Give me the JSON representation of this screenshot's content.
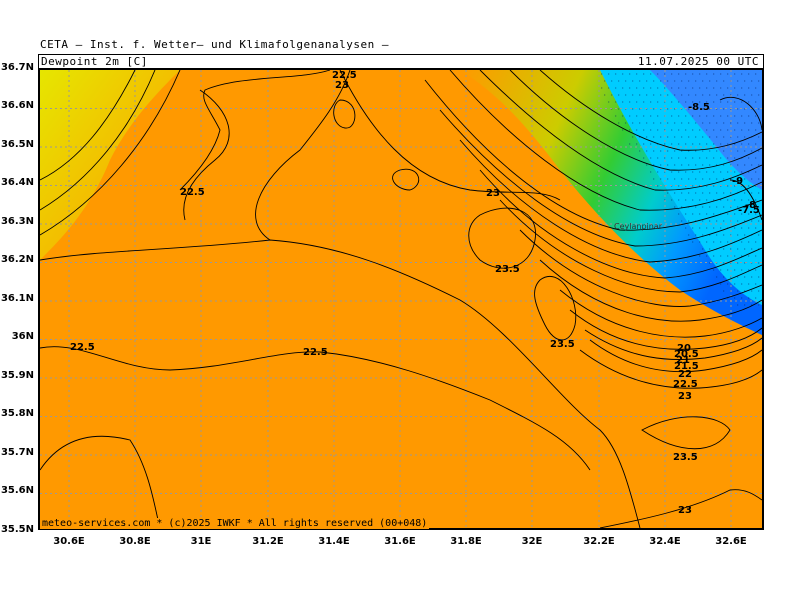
{
  "header": {
    "title": "CETA — Inst. f. Wetter— und Klimafolgenanalysen —",
    "parameter": "Dewpoint 2m [C]",
    "run": "11.07.2025 00 UTC"
  },
  "axes": {
    "lat_labels": [
      "36.7N",
      "36.6N",
      "36.5N",
      "36.4N",
      "36.3N",
      "36.2N",
      "36.1N",
      "36N",
      "35.9N",
      "35.8N",
      "35.7N",
      "35.6N",
      "35.5N"
    ],
    "lon_labels": [
      "30.6E",
      "30.8E",
      "31E",
      "31.2E",
      "31.4E",
      "31.6E",
      "31.8E",
      "32E",
      "32.2E",
      "32.4E",
      "32.6E"
    ]
  },
  "colors": {
    "background_field": "#ff9900",
    "dry_region": "#00bfff",
    "very_dry_region": "#0066ff",
    "transition": "#33cc33",
    "grid": "#999999"
  },
  "contour_labels": {
    "nw_225": "22.5",
    "nw_23": "23",
    "west_225": "22.5",
    "center_23": "23",
    "center_235": "23.5",
    "east_235": "23.5",
    "left_225": "22.5",
    "mid_225": "22.5",
    "se_20": "20",
    "se_205": "20.5",
    "se_21": "21",
    "se_215": "21.5",
    "se_22": "22",
    "se_225": "22.5",
    "se_23": "23",
    "south_235": "23.5",
    "south_23": "23",
    "ne_85": "-8.5",
    "ne_9": "-9",
    "ne_8": "-8",
    "ne_75": "-7.5",
    "place": "Ceylanpinar"
  },
  "footer": {
    "copyright": "meteo-services.com * (c)2025 IWKF * All rights reserved (00+048)"
  }
}
